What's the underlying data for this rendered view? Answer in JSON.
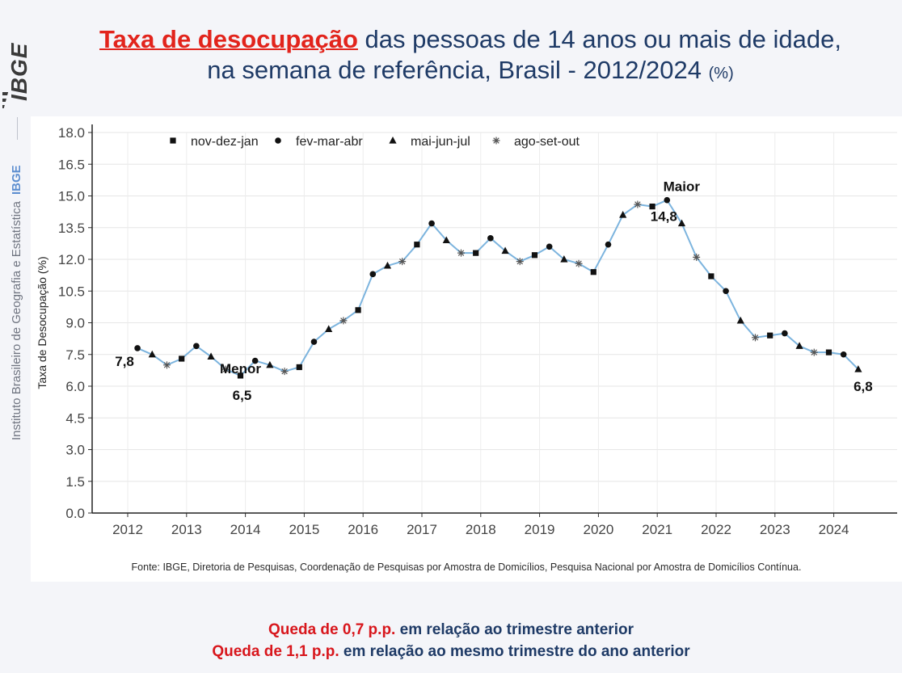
{
  "brand": {
    "logo_text": "IBGE",
    "org_name": "Instituto Brasileiro de Geografia e Estatística",
    "org_abbr": "IBGE"
  },
  "title": {
    "highlight": "Taxa de desocupação",
    "line1_rest": " das pessoas de 14 anos ou mais de idade,",
    "line2": "na semana de referência, Brasil - 2012/2024 ",
    "unit": "(%)"
  },
  "colors": {
    "title_blue": "#1e3a66",
    "highlight_red": "#e2241c",
    "line_blue": "#7cb4de",
    "marker_black": "#111111"
  },
  "chart_data": {
    "type": "line",
    "xlabel": "",
    "ylabel": "Taxa de Desocupação (%)",
    "ylim": [
      0,
      18
    ],
    "y_ticks": [
      "0.0",
      "1.5",
      "3.0",
      "4.5",
      "6.0",
      "7.5",
      "9.0",
      "10.5",
      "12.0",
      "13.5",
      "15.0",
      "16.5",
      "18.0"
    ],
    "x_ticks": [
      "2012",
      "2013",
      "2014",
      "2015",
      "2016",
      "2017",
      "2018",
      "2019",
      "2020",
      "2021",
      "2022",
      "2023",
      "2024"
    ],
    "grid": true,
    "legend_position": "top-left",
    "legend": [
      {
        "label": "nov-dez-jan",
        "marker": "square"
      },
      {
        "label": "fev-mar-abr",
        "marker": "circle"
      },
      {
        "label": "mai-jun-jul",
        "marker": "triangle"
      },
      {
        "label": "ago-set-out",
        "marker": "asterisk"
      }
    ],
    "start_year": 2012,
    "series": [
      {
        "values": [
          7.8,
          7.5,
          7.0,
          7.3,
          7.9,
          7.4,
          6.8,
          6.5,
          7.2,
          7.0,
          6.7,
          6.9,
          8.1,
          8.7,
          9.1,
          9.6,
          11.3,
          11.7,
          11.9,
          12.7,
          13.7,
          12.9,
          12.3,
          12.3,
          13.0,
          12.4,
          11.9,
          12.2,
          12.6,
          12.0,
          11.8,
          11.4,
          12.7,
          14.1,
          14.6,
          14.5,
          14.8,
          13.7,
          12.1,
          11.2,
          10.5,
          9.1,
          8.3,
          8.4,
          8.5,
          7.9,
          7.6,
          7.6,
          7.5,
          6.8
        ]
      }
    ],
    "annotations": [
      {
        "label": "7,8",
        "x_index": 0
      },
      {
        "label": "Menor",
        "x_index": 7
      },
      {
        "label": "6,5",
        "x_index": 7
      },
      {
        "label": "Maior",
        "x_index": 36
      },
      {
        "label": "14,8",
        "x_index": 36
      },
      {
        "label": "6,8",
        "x_index": 49
      }
    ]
  },
  "source": "Fonte: IBGE, Diretoria de Pesquisas, Coordenação de Pesquisas por Amostra de Domicílios, Pesquisa Nacional por Amostra de Domicílios Contínua.",
  "notes": [
    {
      "emphasis": "Queda de 0,7 p.p.",
      "rest": " em relação ao trimestre anterior"
    },
    {
      "emphasis": "Queda de 1,1 p.p.",
      "rest": " em relação ao mesmo trimestre do ano anterior"
    }
  ]
}
